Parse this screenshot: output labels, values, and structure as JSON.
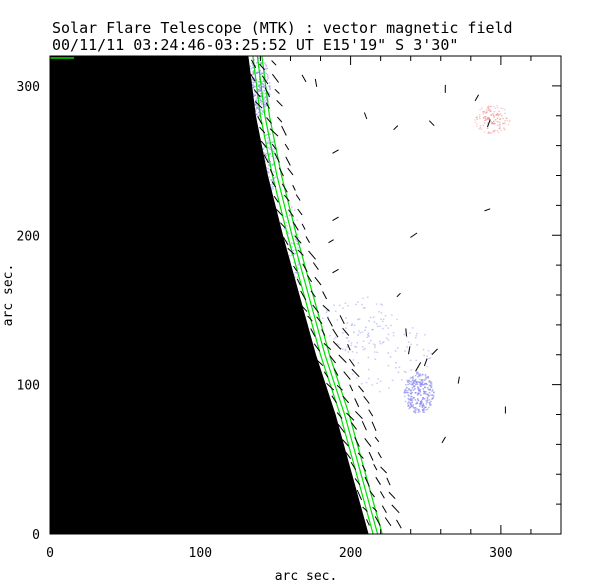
{
  "chart_data": {
    "type": "vector-magnetogram",
    "title": "Solar Flare Telescope (MTK) : vector magnetic field",
    "subtitle": "00/11/11  03:24:46-03:25:52 UT    E15'19\"  S 3'30\"",
    "xlabel": "arc sec.",
    "ylabel": "arc sec.",
    "xlim": [
      0,
      340
    ],
    "ylim": [
      0,
      320
    ],
    "xticks": [
      0,
      100,
      200,
      300
    ],
    "yticks": [
      0,
      100,
      200,
      300
    ],
    "limb": [
      [
        132,
        320
      ],
      [
        137,
        280
      ],
      [
        145,
        240
      ],
      [
        155,
        200
      ],
      [
        166,
        160
      ],
      [
        177,
        120
      ],
      [
        190,
        80
      ],
      [
        201,
        40
      ],
      [
        212,
        0
      ]
    ],
    "neutral_lines": {
      "offsets": [
        3,
        6,
        9
      ],
      "note": "contours following the solar limb"
    },
    "negative_patches": [
      {
        "x": 138,
        "y": 300,
        "rx": 8,
        "ry": 20,
        "strength": 0.9
      },
      {
        "x": 145,
        "y": 250,
        "rx": 5,
        "ry": 25,
        "strength": 0.5
      },
      {
        "x": 160,
        "y": 190,
        "rx": 6,
        "ry": 30,
        "strength": 0.4
      },
      {
        "x": 205,
        "y": 140,
        "rx": 25,
        "ry": 20,
        "strength": 0.35
      },
      {
        "x": 245,
        "y": 95,
        "rx": 10,
        "ry": 14,
        "strength": 1.0
      },
      {
        "x": 225,
        "y": 120,
        "rx": 30,
        "ry": 25,
        "strength": 0.3
      }
    ],
    "positive_patches": [
      {
        "x": 294,
        "y": 278,
        "rx": 12,
        "ry": 10,
        "strength": 0.8
      }
    ],
    "vectors_far": [
      [
        263,
        298,
        90,
        8
      ],
      [
        284,
        292,
        60,
        7
      ],
      [
        292,
        275,
        70,
        8
      ],
      [
        254,
        275,
        135,
        7
      ],
      [
        210,
        280,
        110,
        7
      ],
      [
        230,
        272,
        45,
        6
      ],
      [
        190,
        256,
        30,
        7
      ],
      [
        190,
        211,
        30,
        7
      ],
      [
        291,
        217,
        20,
        6
      ],
      [
        242,
        200,
        35,
        8
      ],
      [
        190,
        176,
        30,
        7
      ],
      [
        237,
        135,
        95,
        8
      ],
      [
        239,
        123,
        80,
        8
      ],
      [
        245,
        112,
        60,
        10
      ],
      [
        250,
        115,
        70,
        8
      ],
      [
        256,
        122,
        45,
        8
      ],
      [
        272,
        103,
        80,
        7
      ],
      [
        303,
        83,
        90,
        7
      ],
      [
        262,
        63,
        60,
        7
      ],
      [
        187,
        196,
        30,
        6
      ],
      [
        232,
        160,
        45,
        5
      ],
      [
        169,
        305,
        120,
        8
      ],
      [
        177,
        302,
        100,
        8
      ]
    ],
    "limb_vector_angle": -55,
    "limb_vector_length": 10,
    "colors": {
      "occulted": "#000000",
      "neutral_line": "#00e000",
      "negative": "#8c8cf0",
      "positive": "#f09090",
      "vectors": "#000000"
    }
  }
}
